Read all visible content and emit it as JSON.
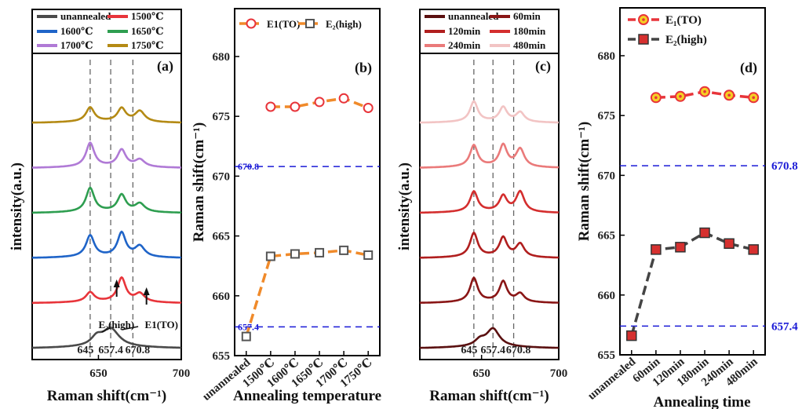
{
  "chart_data": [
    {
      "panel": "(a)",
      "type": "line",
      "xlabel": "Raman shift(cm⁻¹)",
      "ylabel": "intensity(a.u.)",
      "xlim": [
        610,
        700
      ],
      "x_ticks": [
        650,
        700
      ],
      "peak_lines": [
        645,
        657.4,
        670.8
      ],
      "peak_labels": [
        "645",
        "657.4",
        "670.8"
      ],
      "annotations": {
        "e2": "E₂(high)",
        "e1": "E1(TO)"
      },
      "series": [
        {
          "name": "unannealed",
          "color": "#4a4a4a",
          "peaks": [
            [
              649,
              0.35,
              4
            ],
            [
              657.4,
              0.75,
              6
            ]
          ],
          "offset": 0
        },
        {
          "name": "1500℃",
          "color": "#e8343a",
          "peaks": [
            [
              645,
              0.4,
              3
            ],
            [
              664,
              1.0,
              3
            ],
            [
              675,
              0.35,
              3.5
            ]
          ],
          "offset": 1
        },
        {
          "name": "1600℃",
          "color": "#1f64c8",
          "peaks": [
            [
              645,
              0.9,
              3
            ],
            [
              664,
              1.0,
              3
            ],
            [
              675,
              0.45,
              3.5
            ]
          ],
          "offset": 2
        },
        {
          "name": "1650℃",
          "color": "#2e9e50",
          "peaks": [
            [
              645,
              1.0,
              3
            ],
            [
              664,
              0.7,
              3
            ],
            [
              675,
              0.35,
              3.5
            ]
          ],
          "offset": 3
        },
        {
          "name": "1700℃",
          "color": "#b07ad6",
          "peaks": [
            [
              645,
              1.0,
              3
            ],
            [
              664,
              0.7,
              3
            ],
            [
              675,
              0.3,
              3.5
            ]
          ],
          "offset": 4
        },
        {
          "name": "1750℃",
          "color": "#b48a14",
          "peaks": [
            [
              645,
              0.6,
              3
            ],
            [
              664,
              0.55,
              3
            ],
            [
              675,
              0.45,
              3.5
            ]
          ],
          "offset": 5
        }
      ]
    },
    {
      "panel": "(b)",
      "type": "line",
      "xlabel": "Annealing temperature",
      "ylabel": "Raman shift(cm⁻¹)",
      "ylim": [
        655,
        684
      ],
      "y_ticks": [
        655,
        660,
        665,
        670,
        675,
        680
      ],
      "categories": [
        "unannealed",
        "1500℃",
        "1600℃",
        "1650℃",
        "1700℃",
        "1750℃"
      ],
      "ref_lines": [
        670.8,
        657.4
      ],
      "ref_labels": [
        "670.8",
        "657.4"
      ],
      "series": [
        {
          "name": "E1(TO)",
          "marker": "circle",
          "color": "#e8343a",
          "values": [
            null,
            675.8,
            675.8,
            676.2,
            676.5,
            675.7
          ]
        },
        {
          "name": "E₂(high)",
          "marker": "square",
          "color": "#555555",
          "values": [
            656.6,
            663.3,
            663.5,
            663.6,
            663.8,
            663.4
          ]
        }
      ]
    },
    {
      "panel": "(c)",
      "type": "line",
      "xlabel": "Raman shift(cm⁻¹)",
      "ylabel": "intensity(a.u.)",
      "xlim": [
        610,
        700
      ],
      "x_ticks": [
        650,
        700
      ],
      "peak_lines": [
        645,
        657.4,
        670.8
      ],
      "peak_labels": [
        "645",
        "657.4",
        "670.8"
      ],
      "series": [
        {
          "name": "unannealed",
          "color": "#5a1010",
          "peaks": [
            [
              649,
              0.25,
              4
            ],
            [
              657.4,
              0.75,
              5
            ]
          ],
          "offset": 0
        },
        {
          "name": "60min",
          "color": "#8a1616",
          "peaks": [
            [
              645,
              1.0,
              3
            ],
            [
              664,
              0.85,
              3
            ],
            [
              675,
              0.35,
              3.2
            ]
          ],
          "offset": 1
        },
        {
          "name": "120min",
          "color": "#b01e1e",
          "peaks": [
            [
              645,
              1.0,
              3
            ],
            [
              664,
              0.8,
              3
            ],
            [
              675,
              0.55,
              3.2
            ]
          ],
          "offset": 2
        },
        {
          "name": "180min",
          "color": "#d42e2e",
          "peaks": [
            [
              645,
              0.85,
              3
            ],
            [
              664,
              0.65,
              3
            ],
            [
              675,
              0.85,
              3.2
            ]
          ],
          "offset": 3
        },
        {
          "name": "240min",
          "color": "#ea7a7a",
          "peaks": [
            [
              645,
              0.9,
              3
            ],
            [
              664,
              0.9,
              3
            ],
            [
              675,
              0.75,
              3.2
            ]
          ],
          "offset": 4
        },
        {
          "name": "480min",
          "color": "#f2c4c4",
          "peaks": [
            [
              645,
              0.85,
              3
            ],
            [
              664,
              0.6,
              3
            ],
            [
              675,
              0.4,
              3.2
            ]
          ],
          "offset": 5
        }
      ]
    },
    {
      "panel": "(d)",
      "type": "line",
      "xlabel": "Annealing time",
      "ylabel": "Raman shift(cm⁻¹)",
      "ylim": [
        655,
        684
      ],
      "y_ticks": [
        655,
        660,
        665,
        670,
        675,
        680
      ],
      "categories": [
        "unannealed",
        "60min",
        "120min",
        "180min",
        "240min",
        "480min"
      ],
      "ref_lines": [
        670.8,
        657.4
      ],
      "ref_labels": [
        "670.8",
        "657.4"
      ],
      "series": [
        {
          "name": "E₁(TO)",
          "marker": "dotcircle",
          "color": "#e8343a",
          "values": [
            null,
            676.5,
            676.6,
            677.0,
            676.7,
            676.5
          ]
        },
        {
          "name": "E₂(high)",
          "marker": "square",
          "color": "#444444",
          "values": [
            656.6,
            663.8,
            664.0,
            665.2,
            664.3,
            663.8
          ]
        }
      ]
    }
  ]
}
